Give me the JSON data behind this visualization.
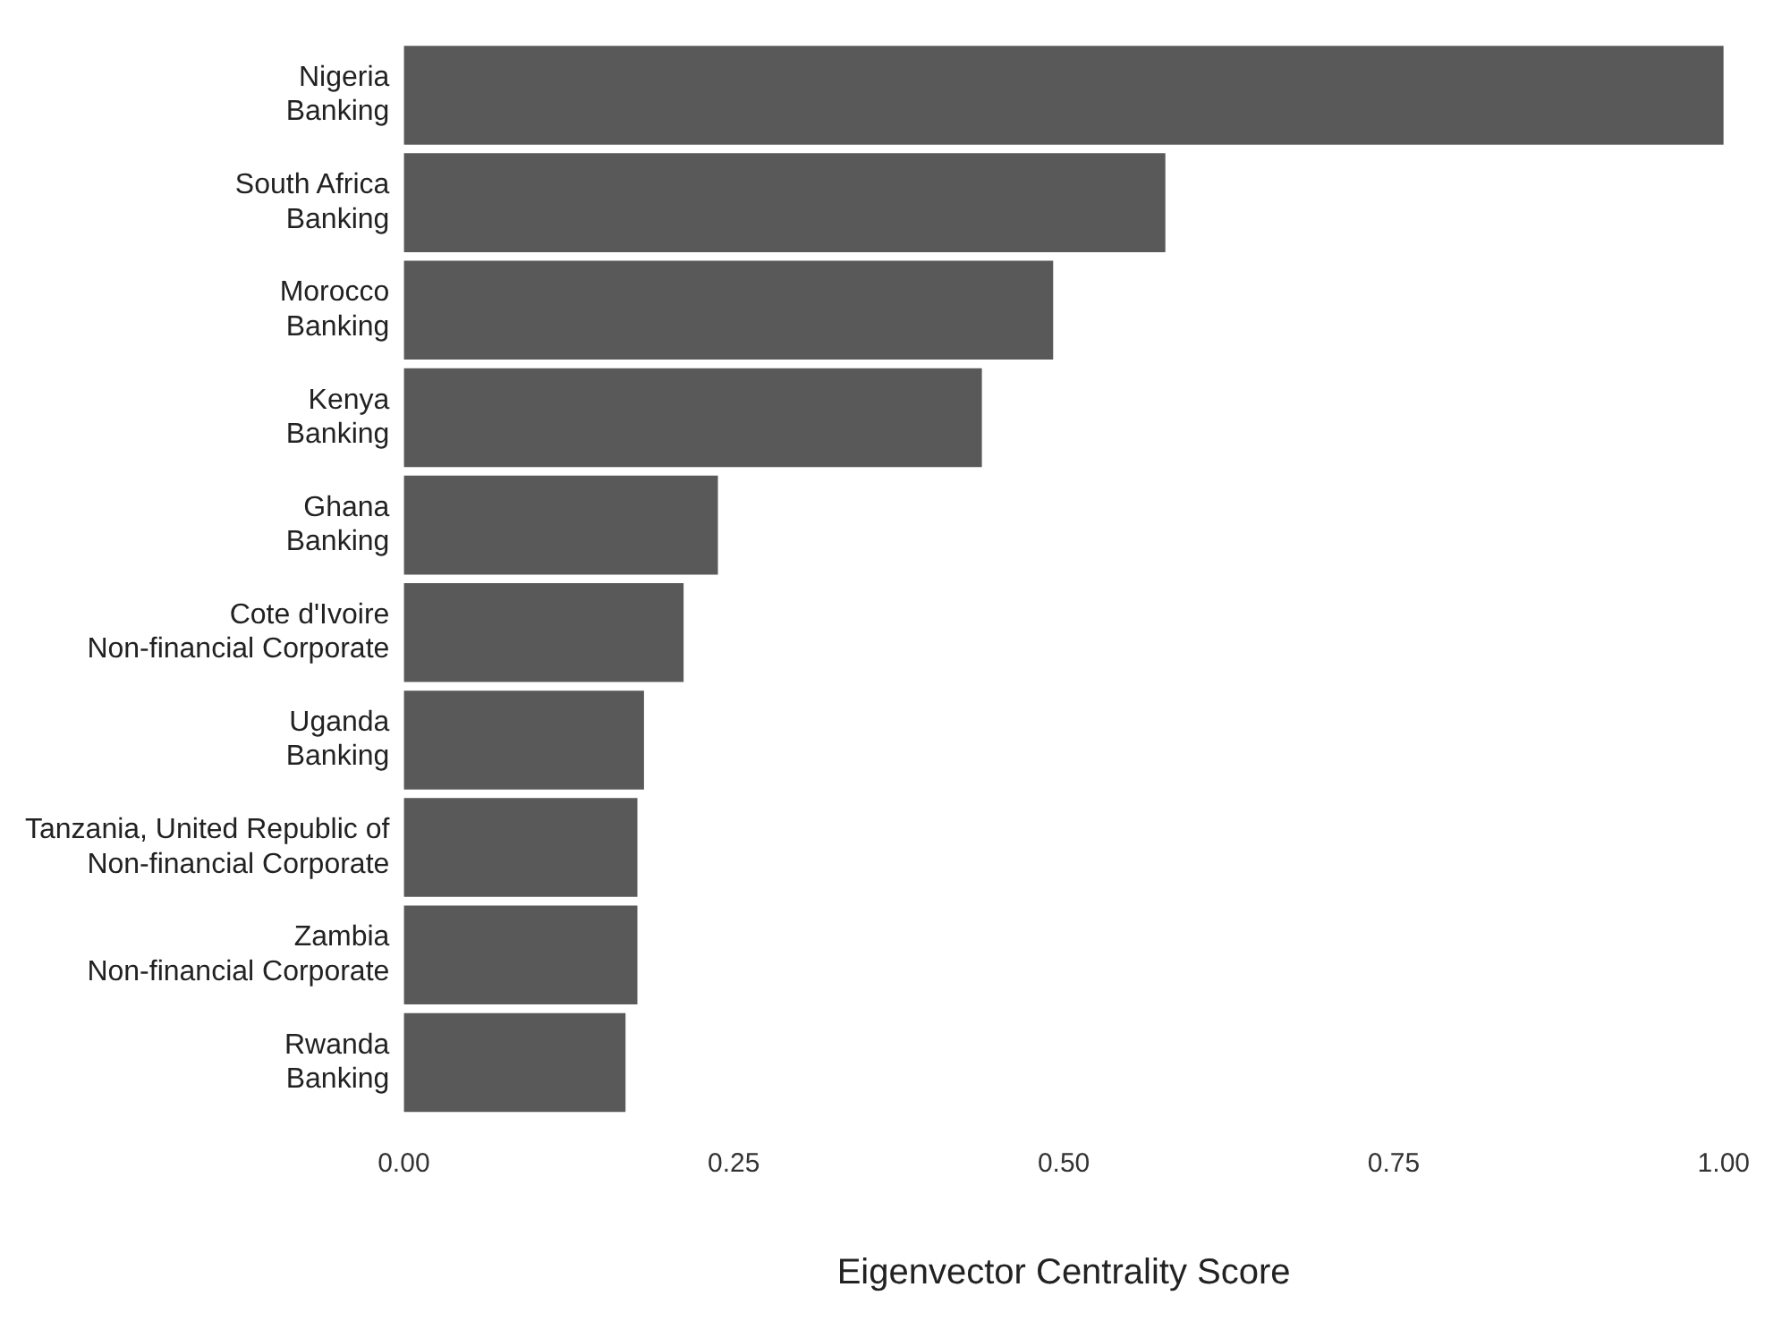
{
  "chart_data": {
    "type": "bar",
    "orientation": "horizontal",
    "xlabel": "Eigenvector Centrality Score",
    "categories": [
      "Nigeria\nBanking",
      "South Africa\nBanking",
      "Morocco\nBanking",
      "Kenya\nBanking",
      "Ghana\nBanking",
      "Cote d'Ivoire\nNon-financial Corporate",
      "Uganda\nBanking",
      "Tanzania, United Republic of\nNon-financial Corporate",
      "Zambia\nNon-financial Corporate",
      "Rwanda\nBanking"
    ],
    "values": [
      1.0,
      0.577,
      0.492,
      0.438,
      0.238,
      0.212,
      0.182,
      0.177,
      0.177,
      0.168
    ],
    "color": "#595959",
    "xlim": [
      0,
      1
    ],
    "xticks": [
      {
        "value": 0,
        "label": "0.00"
      },
      {
        "value": 0.25,
        "label": "0.25"
      },
      {
        "value": 0.5,
        "label": "0.50"
      },
      {
        "value": 0.75,
        "label": "0.75"
      },
      {
        "value": 1,
        "label": "1.00"
      }
    ],
    "grid": false,
    "legend": false
  }
}
